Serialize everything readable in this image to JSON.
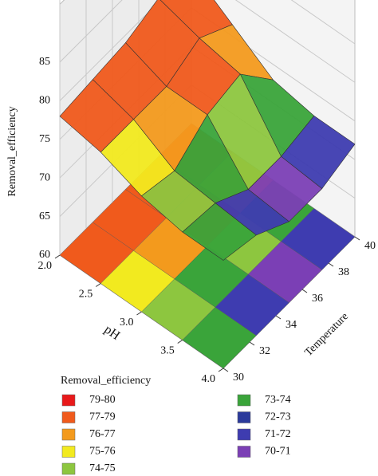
{
  "chart_data": {
    "type": "surface",
    "x_label": "pH",
    "y_label": "Temperature",
    "z_label": "Removal_efficiency",
    "x": [
      2.0,
      2.5,
      3.0,
      3.5,
      4.0
    ],
    "y": [
      30,
      32.5,
      35,
      37.5,
      40
    ],
    "z": [
      [
        78,
        78.5,
        79,
        80.5,
        80
      ],
      [
        77,
        77,
        77,
        79,
        76.5
      ],
      [
        75,
        74,
        77,
        78,
        73
      ],
      [
        74,
        73.5,
        71,
        71,
        72
      ],
      [
        74,
        73,
        70.5,
        70.5,
        72
      ]
    ],
    "xlim": [
      2.0,
      4.0
    ],
    "ylim": [
      30,
      40
    ],
    "zlim": [
      60,
      85
    ],
    "xticks": [
      {
        "value": 2.0,
        "label": "2.0"
      },
      2.5,
      {
        "value": 3.0,
        "label": "3.0"
      },
      3.5,
      {
        "value": 4.0,
        "label": "4.0"
      }
    ],
    "yticks": [
      30,
      32,
      34,
      36,
      38,
      40
    ],
    "zticks": [
      60,
      65,
      70,
      75,
      80,
      85
    ],
    "legend_title": "Removal_efficiency",
    "levels": [
      {
        "label": "79-80",
        "range": [
          79,
          80
        ],
        "color": "#e8191a"
      },
      {
        "label": "77-79",
        "range": [
          77,
          79
        ],
        "color": "#f05a1c"
      },
      {
        "label": "76-77",
        "range": [
          76,
          77
        ],
        "color": "#f39a1d"
      },
      {
        "label": "75-76",
        "range": [
          75,
          76
        ],
        "color": "#f2ea1f"
      },
      {
        "label": "74-75",
        "range": [
          74,
          75
        ],
        "color": "#8dc63f"
      },
      {
        "label": "73-74",
        "range": [
          73,
          74
        ],
        "color": "#3aa43a"
      },
      {
        "label": "72-73",
        "range": [
          72,
          73
        ],
        "color": "#2b3a9b"
      },
      {
        "label": "71-72",
        "range": [
          71,
          72
        ],
        "color": "#3e3cb0"
      },
      {
        "label": "70-71",
        "range": [
          70,
          71
        ],
        "color": "#7b3fb5"
      }
    ]
  }
}
